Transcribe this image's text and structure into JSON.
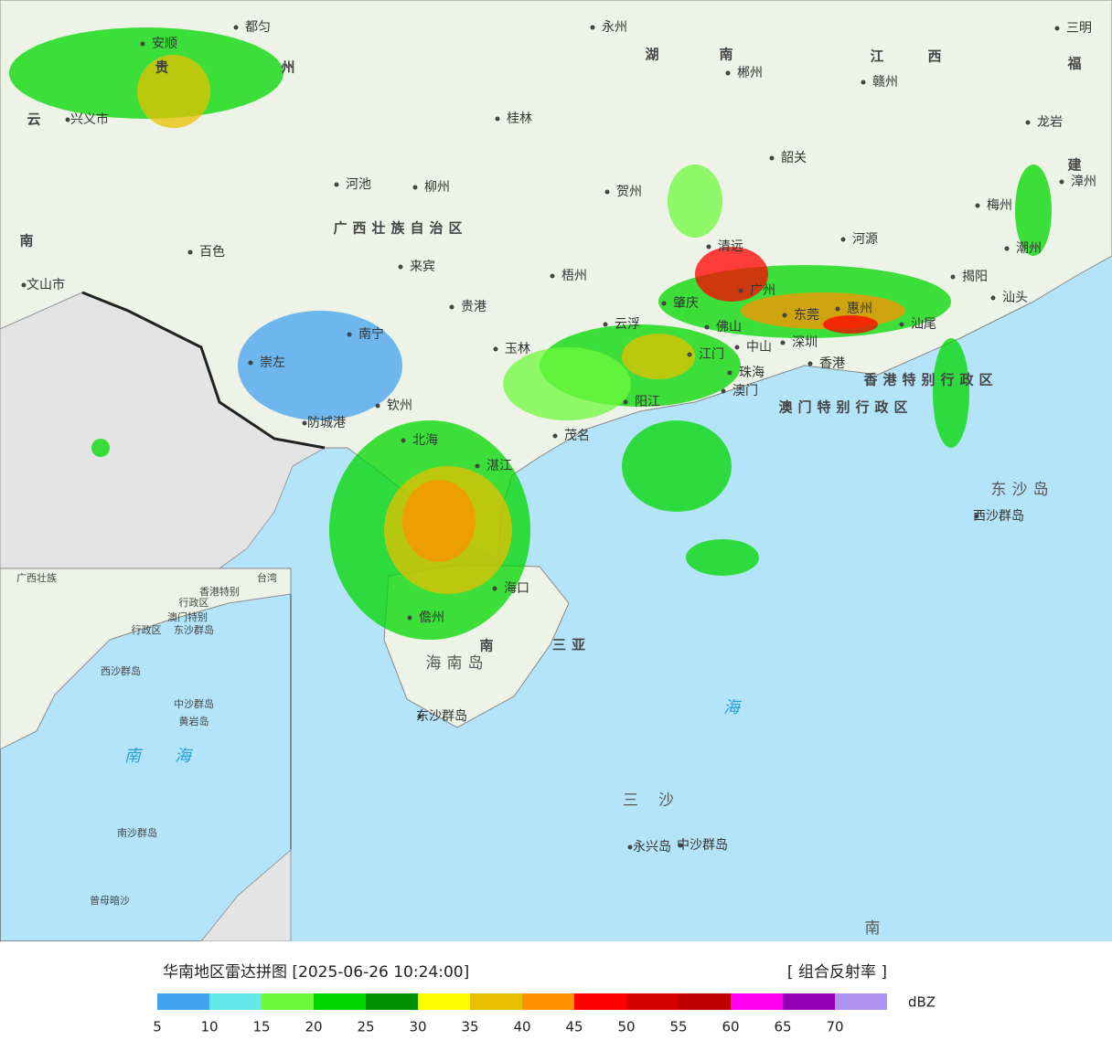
{
  "map": {
    "labels": [
      "三明",
      "福",
      "江",
      "西",
      "赣州",
      "湖",
      "南",
      "郴州",
      "永州",
      "桂林",
      "贺州",
      "韶关",
      "龙岩",
      "建",
      "漳州",
      "梅州",
      "河源",
      "潮州",
      "揭阳",
      "汕头",
      "清远",
      "广州",
      "肇庆",
      "佛山",
      "惠州",
      "东莞",
      "汕尾",
      "江门",
      "中山",
      "深圳",
      "香港",
      "珠海",
      "澳门",
      "香港特别行政区",
      "澳门特别行政区",
      "阳江",
      "云浮",
      "梧州",
      "贵港",
      "玉林",
      "来宾",
      "柳州",
      "河池",
      "百色",
      "南宁",
      "崇左",
      "钦州",
      "防城港",
      "北海",
      "湛江",
      "茂名",
      "广西壮族自治区",
      "贵",
      "州",
      "都匀",
      "安顺",
      "兴义市",
      "云",
      "南",
      "文山市",
      "海口",
      "儋州",
      "海南岛",
      "南",
      "三亚",
      "东沙群岛",
      "东沙岛",
      "西沙群岛",
      "三沙",
      "永兴岛",
      "中沙群岛",
      "南",
      "海"
    ]
  },
  "inset": {
    "labels": [
      "广西壮族",
      "台湾",
      "香港特别",
      "行政区",
      "澳门特别",
      "行政区",
      "东沙群岛",
      "西沙群岛",
      "中沙群岛",
      "黄岩岛",
      "南",
      "海",
      "南沙群岛",
      "曾母暗沙"
    ]
  },
  "footer": {
    "title": "华南地区雷达拼图 [2025-06-26 10:24:00]",
    "product": "[ 组合反射率 ]",
    "legend": {
      "colors": [
        "#42a1f0",
        "#64e7eb",
        "#6dfa3d",
        "#00d800",
        "#019000",
        "#ffff00",
        "#e7c000",
        "#ff9000",
        "#ff0000",
        "#d60000",
        "#c00000",
        "#ff00f0",
        "#9600b4",
        "#ad90f0"
      ],
      "ticks": [
        5,
        10,
        15,
        20,
        25,
        30,
        35,
        40,
        45,
        50,
        55,
        60,
        65,
        70
      ],
      "unit": "dBZ"
    }
  }
}
